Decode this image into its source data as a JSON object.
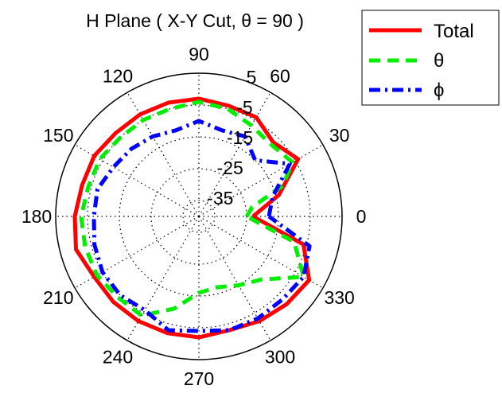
{
  "chart_data": {
    "type": "polar-line",
    "title": "H Plane ( X-Y Cut, θ = 90 )",
    "angle_unit": "degrees",
    "angle_ticks": [
      0,
      30,
      60,
      90,
      120,
      150,
      180,
      210,
      240,
      270,
      300,
      330
    ],
    "angle_tick_labels": [
      "0",
      "30",
      "60",
      "90",
      "120",
      "150",
      "180",
      "210",
      "240",
      "270",
      "300",
      "330"
    ],
    "radial_range": [
      -40,
      5
    ],
    "radial_ticks": [
      -35,
      -25,
      -15,
      -5,
      5
    ],
    "radial_tick_labels": [
      "-35",
      "-25",
      "-15",
      "-5",
      "5"
    ],
    "grid": true,
    "legend": "top-right",
    "series": [
      {
        "name": "Total",
        "color": "#ff0000",
        "style": "solid",
        "angles": [
          0,
          15,
          30,
          45,
          60,
          75,
          90,
          105,
          120,
          135,
          150,
          165,
          180,
          195,
          210,
          225,
          240,
          255,
          270,
          285,
          300,
          315,
          330,
          345,
          360
        ],
        "values": [
          -23,
          -14,
          -4,
          -7,
          -4,
          -4,
          -3,
          -3,
          -3,
          -3,
          -2,
          -2,
          -1,
          0,
          -2,
          -2,
          -2,
          -2,
          -2,
          -3,
          -2,
          -1,
          0,
          -6,
          -23
        ]
      },
      {
        "name": "θ",
        "color": "#00ee00",
        "style": "dashed",
        "angles": [
          0,
          10,
          20,
          30,
          45,
          60,
          75,
          90,
          105,
          120,
          135,
          150,
          165,
          180,
          195,
          210,
          225,
          240,
          255,
          270,
          285,
          300,
          315,
          330,
          345,
          360
        ],
        "values": [
          -25,
          -23,
          -12,
          -6,
          -8,
          -7,
          -5,
          -4,
          -5,
          -5,
          -5,
          -4,
          -4,
          -3,
          -3,
          -3,
          -4,
          -4,
          -10,
          -16,
          -17,
          -15,
          -12,
          -2,
          -9,
          -25
        ]
      },
      {
        "name": "ϕ",
        "color": "#0000ff",
        "style": "dashdot",
        "angles": [
          0,
          15,
          30,
          45,
          60,
          75,
          90,
          105,
          120,
          135,
          150,
          165,
          180,
          195,
          210,
          225,
          240,
          255,
          270,
          285,
          300,
          315,
          330,
          345,
          360
        ],
        "values": [
          -18,
          -16,
          -7,
          -15,
          -11,
          -12,
          -10,
          -12,
          -11,
          -10,
          -9,
          -7,
          -7,
          -6,
          -5,
          -5,
          -6,
          -3,
          -4,
          -3,
          -3,
          -3,
          -2,
          -4,
          -18
        ]
      }
    ]
  }
}
